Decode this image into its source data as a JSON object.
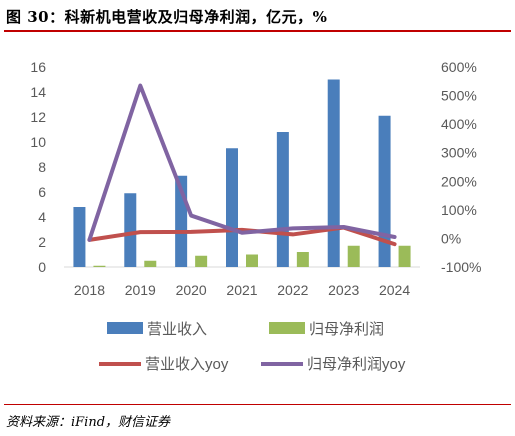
{
  "title": "图 30：科新机电营收及归母净利润，亿元，%",
  "source": "资料来源：iFind，财信证券",
  "chart_data": {
    "type": "bar",
    "categories": [
      "2018",
      "2019",
      "2020",
      "2021",
      "2022",
      "2023",
      "2024"
    ],
    "series": [
      {
        "name": "营业收入",
        "kind": "bar",
        "axis": "left",
        "color": "#4a7ebb",
        "values": [
          4.8,
          5.9,
          7.3,
          9.5,
          10.8,
          15.0,
          12.1
        ]
      },
      {
        "name": "归母净利润",
        "kind": "bar",
        "axis": "left",
        "color": "#9bbb59",
        "values": [
          0.1,
          0.5,
          0.9,
          1.0,
          1.2,
          1.7,
          1.7
        ]
      },
      {
        "name": "营业收入yoy",
        "kind": "line",
        "axis": "right",
        "color": "#c0504d",
        "values": [
          -5,
          22,
          23,
          30,
          14,
          38,
          -20
        ]
      },
      {
        "name": "归母净利润yoy",
        "kind": "line",
        "axis": "right",
        "color": "#8064a2",
        "values": [
          -5,
          535,
          80,
          20,
          35,
          40,
          5
        ]
      }
    ],
    "y_left": {
      "min": 0,
      "max": 16,
      "step": 2,
      "ticks": [
        "0",
        "2",
        "4",
        "6",
        "8",
        "10",
        "12",
        "14",
        "16"
      ]
    },
    "y_right": {
      "min": -100,
      "max": 600,
      "step": 100,
      "ticks": [
        "-100%",
        "0%",
        "100%",
        "200%",
        "300%",
        "400%",
        "500%",
        "600%"
      ]
    },
    "grid": false,
    "legend": "bottom"
  }
}
